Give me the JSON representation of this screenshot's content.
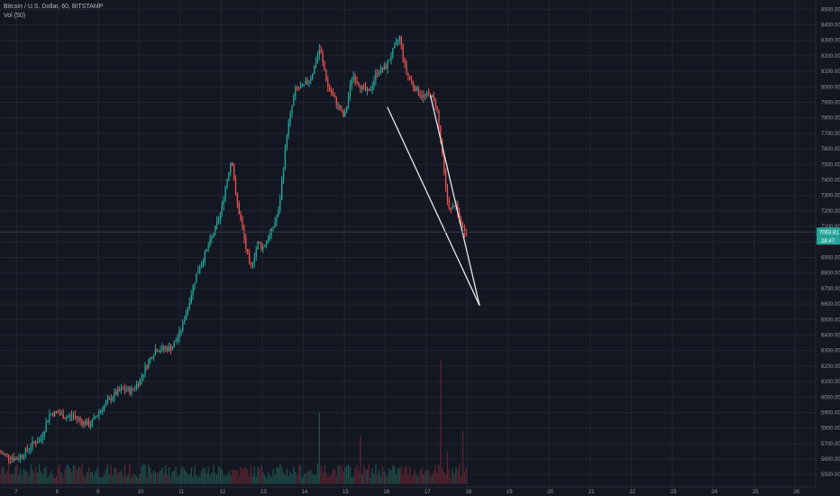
{
  "header": {
    "symbol_title": "Bitcoin / U.S. Dollar, 60, BITSTAMP",
    "volume_title": "Vol (50)"
  },
  "colors": {
    "background": "#131722",
    "grid": "#232632",
    "up": "#26a69a",
    "down": "#ef5350",
    "vol_up": "#1f4f4a",
    "vol_down": "#5b2530",
    "drawing": "#e8e8e8",
    "price_tag": "#26a69a",
    "price_line": "#3a3e4a",
    "axis_text": "#9598a1"
  },
  "chart_data": {
    "type": "candlestick",
    "title": "Bitcoin / U.S. Dollar, 60, BITSTAMP",
    "ylim": [
      5420,
      8560
    ],
    "y_ticks": [
      "5500.00",
      "5600.00",
      "5700.00",
      "5800.00",
      "5900.00",
      "6000.00",
      "6100.00",
      "6200.00",
      "6300.00",
      "6400.00",
      "6500.00",
      "6600.00",
      "6700.00",
      "6800.00",
      "6900.00",
      "7000.00",
      "7100.00",
      "7200.00",
      "7300.00",
      "7400.00",
      "7500.00",
      "7600.00",
      "7700.00",
      "7800.00",
      "7900.00",
      "8000.00",
      "8100.00",
      "8200.00",
      "8300.00",
      "8400.00",
      "8500.00"
    ],
    "x_ticks": [
      "7",
      "8",
      "9",
      "10",
      "11",
      "12",
      "13",
      "14",
      "15",
      "16",
      "17",
      "18",
      "19",
      "20",
      "21",
      "22",
      "23",
      "24",
      "25",
      "26"
    ],
    "x_range_days": [
      6.6,
      26.5
    ],
    "last_price": "7063.81",
    "countdown": "28:47",
    "volume_indicator": "Vol (50)",
    "price_anchors": [
      [
        6.6,
        5640
      ],
      [
        6.8,
        5620
      ],
      [
        7.0,
        5600
      ],
      [
        7.2,
        5640
      ],
      [
        7.4,
        5700
      ],
      [
        7.6,
        5730
      ],
      [
        7.8,
        5890
      ],
      [
        8.0,
        5900
      ],
      [
        8.2,
        5870
      ],
      [
        8.4,
        5880
      ],
      [
        8.6,
        5840
      ],
      [
        8.8,
        5820
      ],
      [
        9.0,
        5900
      ],
      [
        9.2,
        5960
      ],
      [
        9.4,
        6020
      ],
      [
        9.6,
        6050
      ],
      [
        9.8,
        6040
      ],
      [
        10.0,
        6100
      ],
      [
        10.2,
        6220
      ],
      [
        10.4,
        6310
      ],
      [
        10.6,
        6310
      ],
      [
        10.8,
        6320
      ],
      [
        11.0,
        6420
      ],
      [
        11.2,
        6600
      ],
      [
        11.4,
        6800
      ],
      [
        11.6,
        6920
      ],
      [
        11.8,
        7050
      ],
      [
        12.0,
        7200
      ],
      [
        12.1,
        7350
      ],
      [
        12.25,
        7550
      ],
      [
        12.35,
        7300
      ],
      [
        12.5,
        7100
      ],
      [
        12.7,
        6820
      ],
      [
        12.9,
        7000
      ],
      [
        13.0,
        6960
      ],
      [
        13.2,
        7050
      ],
      [
        13.4,
        7200
      ],
      [
        13.6,
        7700
      ],
      [
        13.8,
        7980
      ],
      [
        14.0,
        8000
      ],
      [
        14.2,
        8070
      ],
      [
        14.4,
        8250
      ],
      [
        14.6,
        8000
      ],
      [
        14.8,
        7900
      ],
      [
        15.0,
        7800
      ],
      [
        15.2,
        8080
      ],
      [
        15.4,
        8000
      ],
      [
        15.6,
        7960
      ],
      [
        15.8,
        8100
      ],
      [
        16.0,
        8120
      ],
      [
        16.2,
        8240
      ],
      [
        16.35,
        8320
      ],
      [
        16.5,
        8100
      ],
      [
        16.7,
        8000
      ],
      [
        16.9,
        7940
      ],
      [
        17.1,
        7950
      ],
      [
        17.25,
        7880
      ],
      [
        17.35,
        7650
      ],
      [
        17.5,
        7280
      ],
      [
        17.6,
        7200
      ],
      [
        17.7,
        7250
      ],
      [
        17.8,
        7150
      ],
      [
        17.9,
        7080
      ],
      [
        18.0,
        7060
      ]
    ],
    "volume_spikes": [
      [
        14.4,
        5900
      ],
      [
        15.4,
        5750
      ],
      [
        17.35,
        6240
      ],
      [
        17.5,
        5650
      ],
      [
        17.9,
        5780
      ]
    ],
    "drawings": [
      {
        "name": "trend-line-lower",
        "from": [
          16.05,
          7870
        ],
        "to": [
          18.3,
          6590
        ]
      },
      {
        "name": "trend-line-upper",
        "from": [
          17.1,
          7945
        ],
        "to": [
          18.3,
          6590
        ]
      }
    ],
    "last_price_level": 7063.81
  }
}
